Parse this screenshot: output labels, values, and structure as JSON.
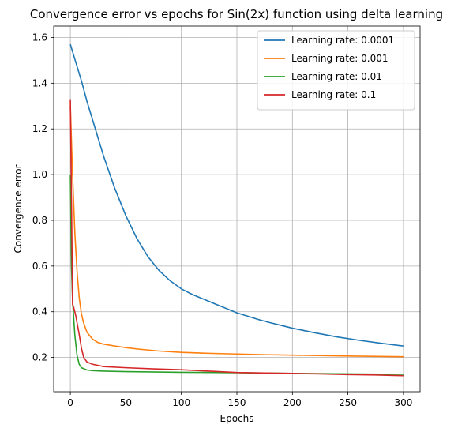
{
  "chart_data": {
    "type": "line",
    "title": "Convergence error vs epochs for Sin(2x) function using delta learning",
    "xlabel": "Epochs",
    "ylabel": "Convergence error",
    "xlim": [
      -15,
      315
    ],
    "ylim": [
      0.05,
      1.65
    ],
    "xticks": [
      0,
      50,
      100,
      150,
      200,
      250,
      300
    ],
    "yticks": [
      0.2,
      0.4,
      0.6,
      0.8,
      1.0,
      1.2,
      1.4,
      1.6
    ],
    "ytick_labels": [
      "0.2",
      "0.4",
      "0.6",
      "0.8",
      "1.0",
      "1.2",
      "1.4",
      "1.6"
    ],
    "grid": true,
    "legend_position": "top-right",
    "series": [
      {
        "name": "Learning rate: 0.0001",
        "color": "#1f77b4",
        "points": [
          [
            0,
            1.57
          ],
          [
            5,
            1.49
          ],
          [
            10,
            1.41
          ],
          [
            15,
            1.32
          ],
          [
            20,
            1.24
          ],
          [
            25,
            1.16
          ],
          [
            30,
            1.08
          ],
          [
            35,
            1.01
          ],
          [
            40,
            0.94
          ],
          [
            45,
            0.88
          ],
          [
            50,
            0.82
          ],
          [
            55,
            0.77
          ],
          [
            60,
            0.72
          ],
          [
            65,
            0.68
          ],
          [
            70,
            0.64
          ],
          [
            75,
            0.61
          ],
          [
            80,
            0.58
          ],
          [
            90,
            0.535
          ],
          [
            100,
            0.5
          ],
          [
            110,
            0.475
          ],
          [
            120,
            0.455
          ],
          [
            130,
            0.435
          ],
          [
            140,
            0.415
          ],
          [
            150,
            0.395
          ],
          [
            160,
            0.38
          ],
          [
            170,
            0.365
          ],
          [
            180,
            0.352
          ],
          [
            190,
            0.34
          ],
          [
            200,
            0.328
          ],
          [
            220,
            0.308
          ],
          [
            240,
            0.29
          ],
          [
            260,
            0.275
          ],
          [
            280,
            0.262
          ],
          [
            300,
            0.25
          ]
        ]
      },
      {
        "name": "Learning rate: 0.001",
        "color": "#ff7f0e",
        "points": [
          [
            0,
            1.3
          ],
          [
            2,
            1.0
          ],
          [
            4,
            0.75
          ],
          [
            6,
            0.58
          ],
          [
            8,
            0.46
          ],
          [
            10,
            0.39
          ],
          [
            12,
            0.35
          ],
          [
            15,
            0.31
          ],
          [
            20,
            0.28
          ],
          [
            25,
            0.265
          ],
          [
            30,
            0.258
          ],
          [
            40,
            0.25
          ],
          [
            50,
            0.243
          ],
          [
            60,
            0.237
          ],
          [
            80,
            0.228
          ],
          [
            100,
            0.222
          ],
          [
            125,
            0.218
          ],
          [
            150,
            0.215
          ],
          [
            175,
            0.212
          ],
          [
            200,
            0.21
          ],
          [
            250,
            0.206
          ],
          [
            300,
            0.203
          ]
        ]
      },
      {
        "name": "Learning rate: 0.01",
        "color": "#2ca02c",
        "points": [
          [
            0,
            1.0
          ],
          [
            1,
            0.6
          ],
          [
            2,
            0.45
          ],
          [
            4,
            0.3
          ],
          [
            6,
            0.21
          ],
          [
            8,
            0.17
          ],
          [
            10,
            0.155
          ],
          [
            15,
            0.145
          ],
          [
            20,
            0.142
          ],
          [
            30,
            0.14
          ],
          [
            50,
            0.138
          ],
          [
            100,
            0.135
          ],
          [
            150,
            0.133
          ],
          [
            200,
            0.13
          ],
          [
            250,
            0.128
          ],
          [
            300,
            0.126
          ]
        ]
      },
      {
        "name": "Learning rate: 0.1",
        "color": "#d62728",
        "points": [
          [
            0,
            1.33
          ],
          [
            1,
            0.9
          ],
          [
            2,
            0.43
          ],
          [
            3,
            0.42
          ],
          [
            5,
            0.38
          ],
          [
            8,
            0.3
          ],
          [
            10,
            0.24
          ],
          [
            12,
            0.2
          ],
          [
            15,
            0.18
          ],
          [
            20,
            0.17
          ],
          [
            30,
            0.16
          ],
          [
            50,
            0.155
          ],
          [
            75,
            0.15
          ],
          [
            100,
            0.146
          ],
          [
            125,
            0.14
          ],
          [
            150,
            0.134
          ],
          [
            175,
            0.132
          ],
          [
            200,
            0.13
          ],
          [
            225,
            0.128
          ],
          [
            250,
            0.125
          ],
          [
            275,
            0.123
          ],
          [
            300,
            0.12
          ]
        ]
      }
    ]
  }
}
